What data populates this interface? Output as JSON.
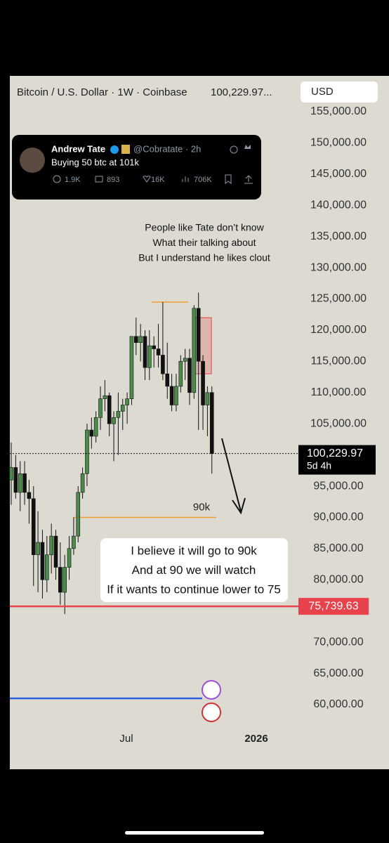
{
  "chart_data": {
    "type": "candlestick",
    "title": "Bitcoin / U.S. Dollar · 1W · Coinbase",
    "header_price": "100,229.97...",
    "currency": "USD",
    "ylim": [
      53000,
      157000
    ],
    "yticks": [
      {
        "value": 155000,
        "label": "155,000.00"
      },
      {
        "value": 150000,
        "label": "150,000.00"
      },
      {
        "value": 145000,
        "label": "145,000.00"
      },
      {
        "value": 140000,
        "label": "140,000.00"
      },
      {
        "value": 135000,
        "label": "135,000.00"
      },
      {
        "value": 130000,
        "label": "130,000.00"
      },
      {
        "value": 125000,
        "label": "125,000.00"
      },
      {
        "value": 120000,
        "label": "120,000.00"
      },
      {
        "value": 115000,
        "label": "115,000.00"
      },
      {
        "value": 110000,
        "label": "110,000.00"
      },
      {
        "value": 105000,
        "label": "105,000.00"
      },
      {
        "value": 95000,
        "label": "95,000.00"
      },
      {
        "value": 90000,
        "label": "90,000.00"
      },
      {
        "value": 85000,
        "label": "85,000.00"
      },
      {
        "value": 80000,
        "label": "80,000.00"
      },
      {
        "value": 70000,
        "label": "70,000.00"
      },
      {
        "value": 65000,
        "label": "65,000.00"
      },
      {
        "value": 60000,
        "label": "60,000.00"
      }
    ],
    "x_labels": [
      "Jul",
      "2026"
    ],
    "open": [
      96000,
      98000,
      94000,
      97000,
      94000,
      93000,
      84000,
      86000,
      80000,
      84000,
      87000,
      82000,
      78000,
      82000,
      85000,
      87000,
      94000,
      97000,
      104000,
      103000,
      106000,
      109000,
      109500,
      105000,
      106000,
      107000,
      108000,
      109000,
      119000,
      118000,
      119000,
      114000,
      117500,
      117000,
      116000,
      113000,
      111000,
      108000,
      111000,
      115000,
      115500,
      110000,
      123500,
      115000,
      108000,
      110000
    ],
    "high": [
      102000,
      100000,
      99000,
      99000,
      96000,
      95000,
      91000,
      88000,
      87000,
      89000,
      88000,
      86000,
      84000,
      87000,
      90000,
      95000,
      98000,
      105000,
      106000,
      107000,
      111000,
      112000,
      110000,
      107000,
      110000,
      109000,
      110000,
      119000,
      122000,
      121000,
      120000,
      120000,
      119000,
      121000,
      124500,
      118000,
      113000,
      113000,
      116000,
      117000,
      117000,
      124000,
      126000,
      116000,
      111000,
      111000
    ],
    "low": [
      92000,
      93000,
      91000,
      92000,
      89000,
      79000,
      78000,
      77000,
      78000,
      81000,
      80000,
      76000,
      74500,
      80000,
      84000,
      86000,
      93000,
      95000,
      101000,
      102000,
      104000,
      107000,
      103000,
      99000,
      100000,
      104000,
      105000,
      108000,
      116000,
      115000,
      112000,
      112000,
      114000,
      114000,
      112000,
      109000,
      107000,
      107000,
      110000,
      112000,
      108000,
      109000,
      104000,
      104000,
      103000,
      97000
    ],
    "close": [
      98000,
      94000,
      97000,
      94000,
      93000,
      84000,
      86000,
      80000,
      84000,
      87000,
      82000,
      78000,
      82000,
      85000,
      87000,
      94000,
      97000,
      104000,
      103000,
      106000,
      109000,
      109500,
      105000,
      106000,
      107000,
      108000,
      109000,
      119000,
      118000,
      119000,
      114000,
      117500,
      117000,
      116000,
      113000,
      111000,
      108000,
      111000,
      115000,
      115500,
      110000,
      123500,
      115000,
      108000,
      110000,
      100229.97
    ],
    "up_color": "#4b8b4a",
    "down_color": "#111111",
    "current_price": {
      "value": 100229.97,
      "label": "100,229.97"
    },
    "countdown": "5d 4h",
    "alert_level": {
      "value": 75739.63,
      "label": "75,739.63",
      "color": "#e8434d"
    },
    "levels": [
      {
        "value": 90000,
        "label": "90k",
        "color": "#f0a030"
      },
      {
        "value": 124500,
        "color": "#f0a030"
      },
      {
        "value": 61000,
        "color": "#2c5fe0"
      }
    ],
    "zone": {
      "low": 113000,
      "high": 122000,
      "color": "#e8434d"
    },
    "annotations": [
      [
        "People like Tate don’t know",
        "What their talking about",
        "But I understand he likes clout"
      ],
      [
        "I believe it will go to 90k",
        "And at 90 we will watch",
        "If it wants to continue lower to 75"
      ]
    ]
  },
  "tweet": {
    "name": "Andrew Tate",
    "handle": "@Cobratate · 2h",
    "text": "Buying 50 btc at 101k",
    "replies": "1.9K",
    "reposts": "893",
    "likes": "16K",
    "views": "706K"
  }
}
